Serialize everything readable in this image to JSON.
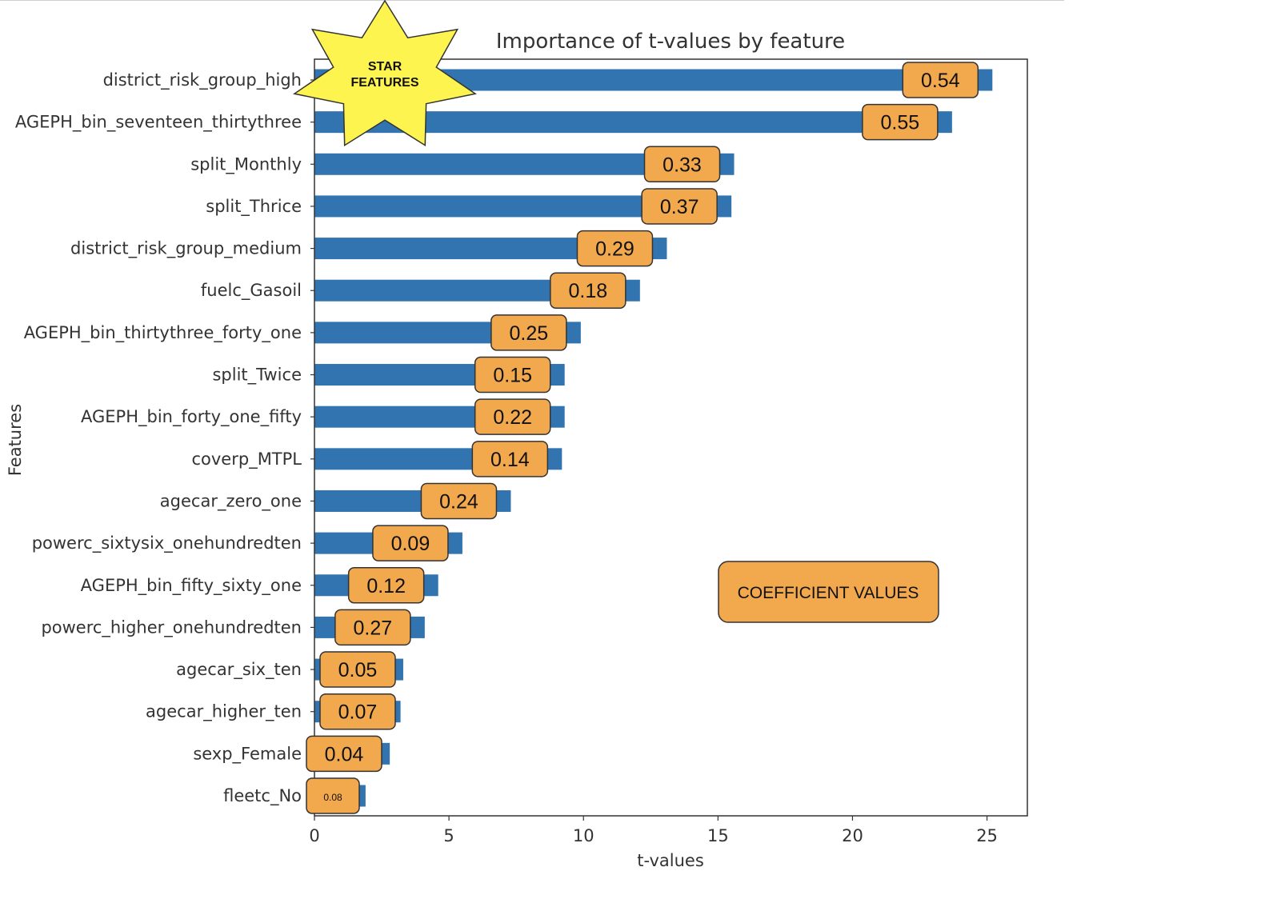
{
  "chart_data": {
    "type": "bar",
    "orientation": "horizontal",
    "title": "Importance of t-values by feature",
    "xlabel": "t-values",
    "ylabel": "Features",
    "xlim": [
      0,
      26.5
    ],
    "xticks": [
      "0",
      "5",
      "10",
      "15",
      "20",
      "25"
    ],
    "bar_color": "#3274b0",
    "grid": false,
    "categories": [
      "district_risk_group_high",
      "AGEPH_bin_seventeen_thirtythree",
      "split_Monthly",
      "split_Thrice",
      "district_risk_group_medium",
      "fuelc_Gasoil",
      "AGEPH_bin_thirtythree_forty_one",
      "split_Twice",
      "AGEPH_bin_forty_one_fifty",
      "coverp_MTPL",
      "agecar_zero_one",
      "powerc_sixtysix_onehundredten",
      "AGEPH_bin_fifty_sixty_one",
      "powerc_higher_onehundredten",
      "agecar_six_ten",
      "agecar_higher_ten",
      "sexp_Female",
      "fleetc_No"
    ],
    "values": [
      25.2,
      23.7,
      15.6,
      15.5,
      13.1,
      12.1,
      9.9,
      9.3,
      9.3,
      9.2,
      7.3,
      5.5,
      4.6,
      4.1,
      3.3,
      3.2,
      2.8,
      1.9
    ],
    "coefficients": [
      "0.54",
      "0.55",
      "0.33",
      "0.37",
      "0.29",
      "0.18",
      "0.25",
      "0.15",
      "0.22",
      "0.14",
      "0.24",
      "0.09",
      "0.12",
      "0.27",
      "0.05",
      "0.07",
      "0.04",
      "0.08"
    ]
  },
  "annotations": {
    "star_line1": "STAR",
    "star_line2": "FEATURES",
    "legend_label": "COEFFICIENT VALUES",
    "tag_color": "#f2a94e"
  }
}
